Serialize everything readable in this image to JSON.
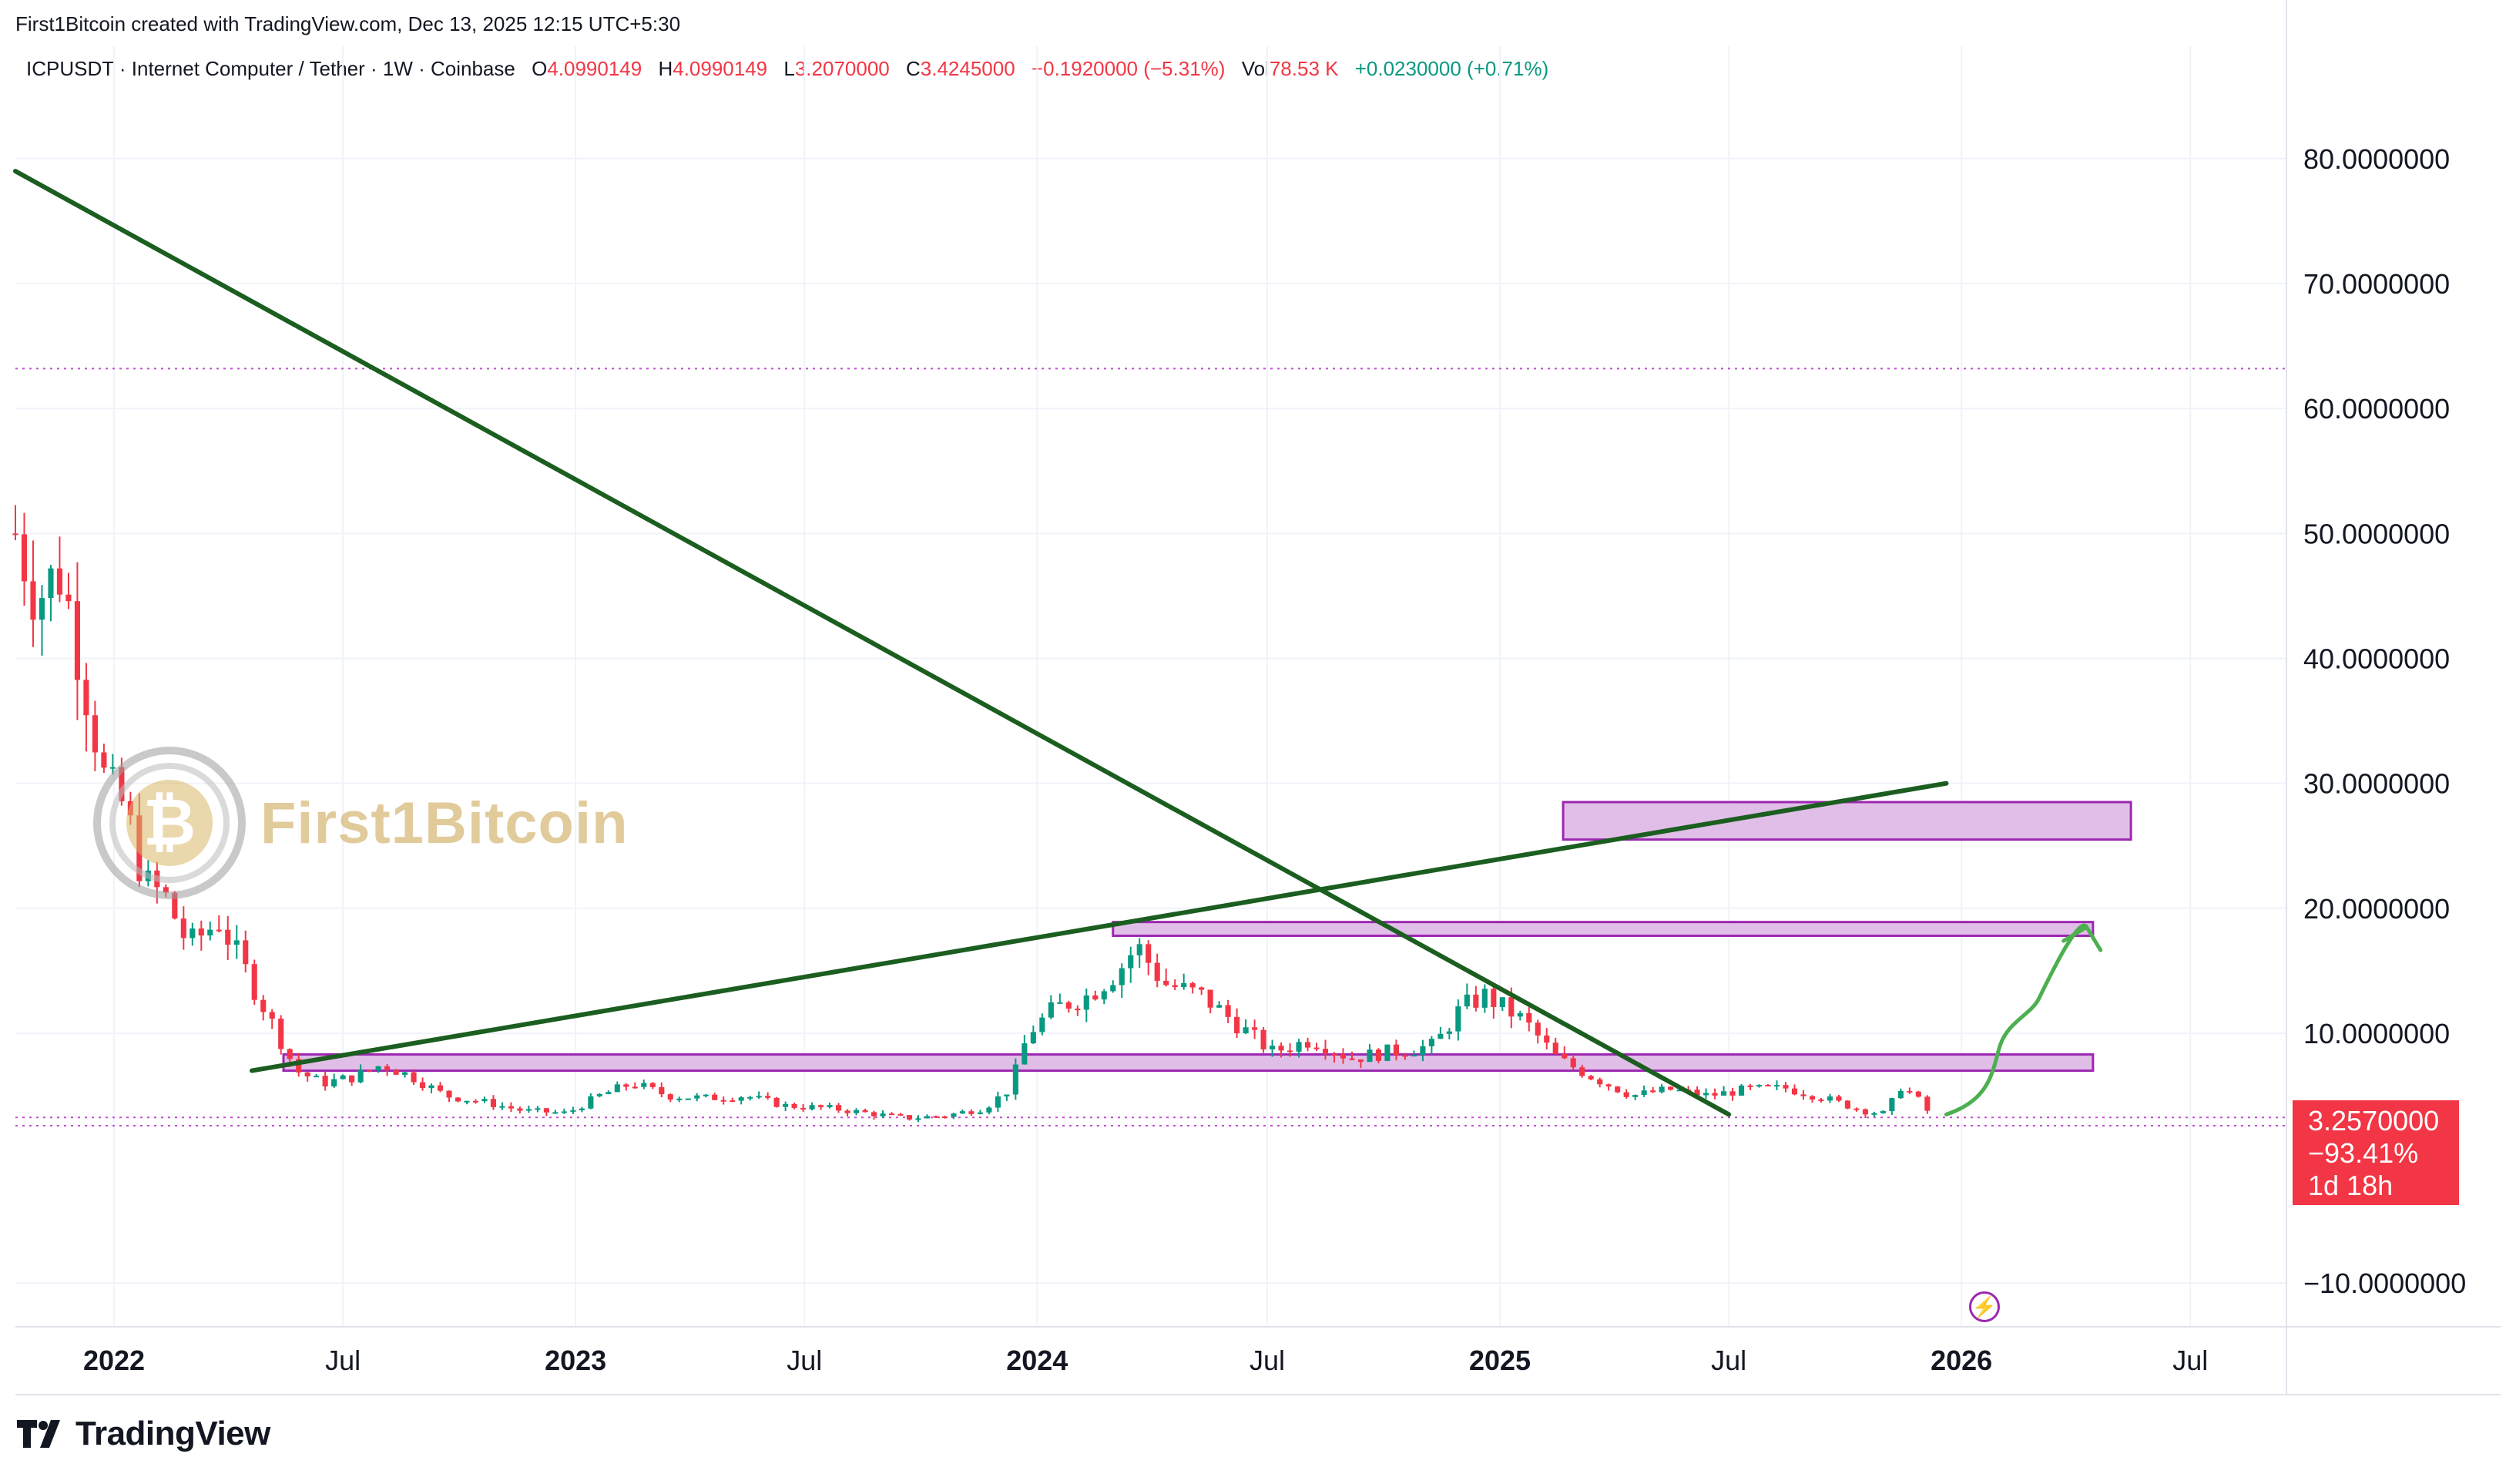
{
  "header": {
    "creator_line": "First1Bitcoin created with TradingView.com, Dec 13, 2025 12:15 UTC+5:30"
  },
  "legend": {
    "symbol": "ICPUSDT · Internet Computer / Tether · 1W · Coinbase",
    "open_label": "O",
    "open": "4.0990149",
    "high_label": "H",
    "high": "4.0990149",
    "low_label": "L",
    "low": "3.2070000",
    "close_label": "C",
    "close": "3.4245000",
    "change": "−0.1920000 (−5.31%)",
    "vol_label": "Vol",
    "vol": "78.53 K",
    "vol_change": "+0.0230000 (+0.71%)"
  },
  "watermark": {
    "text": "First1Bitcoin"
  },
  "price_tag": {
    "price": "3.2570000",
    "change": "−93.41%",
    "countdown": "1d 18h"
  },
  "footer": {
    "brand": "TradingView"
  },
  "colors": {
    "up": "#089981",
    "down": "#f23645",
    "trendline": "#1b5e20",
    "zone_fill": "#e1bee7",
    "zone_border": "#9c27b0",
    "arrow": "#4caf50"
  },
  "chart_data": {
    "type": "candlestick",
    "title": "ICPUSDT · Internet Computer / Tether · 1W · Coinbase",
    "timeframe": "1W",
    "x_range": [
      "2021-10-15",
      "2026-09-15"
    ],
    "ylim": [
      -13.5,
      89
    ],
    "y_ticks": [
      {
        "value": 80,
        "label": "80.0000000"
      },
      {
        "value": 70,
        "label": "70.0000000"
      },
      {
        "value": 60,
        "label": "60.0000000"
      },
      {
        "value": 50,
        "label": "50.0000000"
      },
      {
        "value": 40,
        "label": "40.0000000"
      },
      {
        "value": 30,
        "label": "30.0000000"
      },
      {
        "value": 20,
        "label": "20.0000000"
      },
      {
        "value": 10,
        "label": "10.0000000"
      },
      {
        "value": -10,
        "label": "−10.0000000"
      }
    ],
    "x_ticks": [
      {
        "date": "2022-01-01",
        "label": "2022",
        "major": true
      },
      {
        "date": "2022-07-01",
        "label": "Jul",
        "major": false
      },
      {
        "date": "2023-01-01",
        "label": "2023",
        "major": true
      },
      {
        "date": "2023-07-01",
        "label": "Jul",
        "major": false
      },
      {
        "date": "2024-01-01",
        "label": "2024",
        "major": true
      },
      {
        "date": "2024-07-01",
        "label": "Jul",
        "major": false
      },
      {
        "date": "2025-01-01",
        "label": "2025",
        "major": true
      },
      {
        "date": "2025-07-01",
        "label": "Jul",
        "major": false
      },
      {
        "date": "2026-01-01",
        "label": "2026",
        "major": true
      },
      {
        "date": "2026-07-01",
        "label": "Jul",
        "major": false
      }
    ],
    "price_path": [
      [
        "2021-10-15",
        50
      ],
      [
        "2021-11-01",
        45
      ],
      [
        "2021-11-20",
        47
      ],
      [
        "2021-12-05",
        40
      ],
      [
        "2021-12-25",
        30
      ],
      [
        "2022-01-10",
        28
      ],
      [
        "2022-01-25",
        22
      ],
      [
        "2022-02-10",
        21
      ],
      [
        "2022-03-01",
        17
      ],
      [
        "2022-03-25",
        19
      ],
      [
        "2022-04-15",
        15
      ],
      [
        "2022-05-05",
        11
      ],
      [
        "2022-05-25",
        7
      ],
      [
        "2022-06-15",
        6
      ],
      [
        "2022-07-10",
        6.5
      ],
      [
        "2022-08-01",
        7.5
      ],
      [
        "2022-08-25",
        6.5
      ],
      [
        "2022-09-20",
        5
      ],
      [
        "2022-10-20",
        4.5
      ],
      [
        "2022-11-20",
        3.8
      ],
      [
        "2022-12-25",
        3.6
      ],
      [
        "2023-01-20",
        5
      ],
      [
        "2023-02-15",
        6
      ],
      [
        "2023-03-15",
        5
      ],
      [
        "2023-04-15",
        4.8
      ],
      [
        "2023-05-15",
        5
      ],
      [
        "2023-06-15",
        4.2
      ],
      [
        "2023-07-20",
        4
      ],
      [
        "2023-08-20",
        3.6
      ],
      [
        "2023-09-20",
        3.2
      ],
      [
        "2023-10-20",
        3.4
      ],
      [
        "2023-11-20",
        4
      ],
      [
        "2023-12-10",
        5.5
      ],
      [
        "2023-12-25",
        10
      ],
      [
        "2024-01-15",
        12
      ],
      [
        "2024-02-10",
        13
      ],
      [
        "2024-03-05",
        15
      ],
      [
        "2024-03-20",
        17
      ],
      [
        "2024-04-10",
        14
      ],
      [
        "2024-05-10",
        13
      ],
      [
        "2024-06-10",
        10.5
      ],
      [
        "2024-07-05",
        8.5
      ],
      [
        "2024-08-05",
        9.5
      ],
      [
        "2024-09-05",
        8
      ],
      [
        "2024-10-05",
        8.5
      ],
      [
        "2024-11-10",
        9
      ],
      [
        "2024-12-01",
        12
      ],
      [
        "2024-12-20",
        13
      ],
      [
        "2025-01-20",
        11
      ],
      [
        "2025-02-15",
        8
      ],
      [
        "2025-03-15",
        6.5
      ],
      [
        "2025-04-15",
        5
      ],
      [
        "2025-05-15",
        5.5
      ],
      [
        "2025-06-15",
        5
      ],
      [
        "2025-07-15",
        5.5
      ],
      [
        "2025-08-15",
        5.6
      ],
      [
        "2025-09-15",
        4.8
      ],
      [
        "2025-10-15",
        3.8
      ],
      [
        "2025-11-05",
        3.5
      ],
      [
        "2025-11-10",
        6
      ],
      [
        "2025-11-25",
        5
      ],
      [
        "2025-12-08",
        3.4245
      ]
    ],
    "drawings": {
      "trendlines": [
        {
          "from": [
            "2021-10-15",
            79
          ],
          "to": [
            "2025-07-01",
            3.5
          ]
        },
        {
          "from": [
            "2022-04-20",
            7
          ],
          "to": [
            "2025-12-20",
            30
          ]
        }
      ],
      "zones": [
        {
          "x_from": "2025-02-20",
          "x_to": "2026-05-15",
          "y_low": 25.5,
          "y_high": 28.5
        },
        {
          "x_from": "2024-03-01",
          "x_to": "2026-04-15",
          "y_low": 17.8,
          "y_high": 18.9
        },
        {
          "x_from": "2022-05-15",
          "x_to": "2026-04-15",
          "y_low": 7,
          "y_high": 8.3
        }
      ],
      "dotted_levels": [
        63.2,
        3.257,
        2.6
      ]
    }
  }
}
